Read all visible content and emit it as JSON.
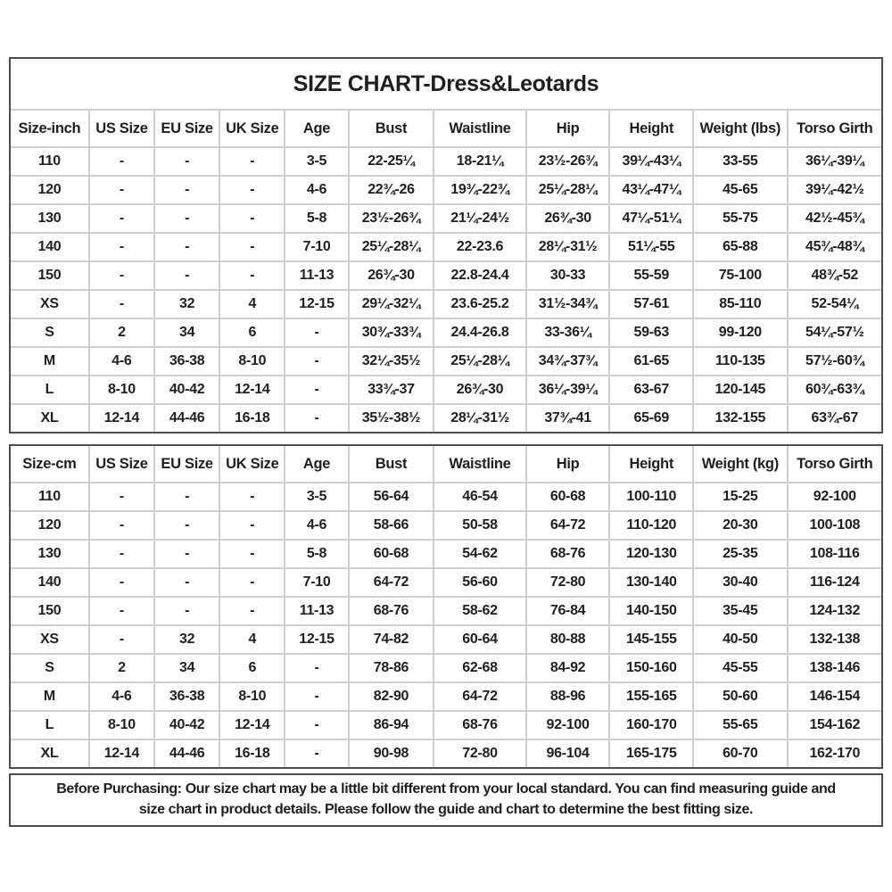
{
  "title": "SIZE CHART-Dress&Leotards",
  "tables": [
    {
      "name": "size-table-inch",
      "headers": [
        "Size-inch",
        "US Size",
        "EU Size",
        "UK Size",
        "Age",
        "Bust",
        "Waistline",
        "Hip",
        "Height",
        "Weight (lbs)",
        "Torso Girth"
      ],
      "rows": [
        [
          "110",
          "-",
          "-",
          "-",
          "3-5",
          "22-25¼",
          "18-21¼",
          "23½-26¾",
          "39¼-43¼",
          "33-55",
          "36¼-39¼"
        ],
        [
          "120",
          "-",
          "-",
          "-",
          "4-6",
          "22¾-26",
          "19¾-22¾",
          "25¼-28¼",
          "43¼-47¼",
          "45-65",
          "39¼-42½"
        ],
        [
          "130",
          "-",
          "-",
          "-",
          "5-8",
          "23½-26¾",
          "21¼-24½",
          "26¾-30",
          "47¼-51¼",
          "55-75",
          "42½-45¾"
        ],
        [
          "140",
          "-",
          "-",
          "-",
          "7-10",
          "25¼-28¼",
          "22-23.6",
          "28¼-31½",
          "51¼-55",
          "65-88",
          "45¾-48¾"
        ],
        [
          "150",
          "-",
          "-",
          "-",
          "11-13",
          "26¾-30",
          "22.8-24.4",
          "30-33",
          "55-59",
          "75-100",
          "48¾-52"
        ],
        [
          "XS",
          "-",
          "32",
          "4",
          "12-15",
          "29¼-32¼",
          "23.6-25.2",
          "31½-34¾",
          "57-61",
          "85-110",
          "52-54¼"
        ],
        [
          "S",
          "2",
          "34",
          "6",
          "-",
          "30¾-33¾",
          "24.4-26.8",
          "33-36¼",
          "59-63",
          "99-120",
          "54¼-57½"
        ],
        [
          "M",
          "4-6",
          "36-38",
          "8-10",
          "-",
          "32¼-35½",
          "25¼-28¼",
          "34¾-37¾",
          "61-65",
          "110-135",
          "57½-60¾"
        ],
        [
          "L",
          "8-10",
          "40-42",
          "12-14",
          "-",
          "33¾-37",
          "26¾-30",
          "36¼-39¼",
          "63-67",
          "120-145",
          "60¾-63¾"
        ],
        [
          "XL",
          "12-14",
          "44-46",
          "16-18",
          "-",
          "35½-38½",
          "28¼-31½",
          "37¾-41",
          "65-69",
          "132-155",
          "63¾-67"
        ]
      ]
    },
    {
      "name": "size-table-cm",
      "headers": [
        "Size-cm",
        "US Size",
        "EU Size",
        "UK Size",
        "Age",
        "Bust",
        "Waistline",
        "Hip",
        "Height",
        "Weight (kg)",
        "Torso Girth"
      ],
      "rows": [
        [
          "110",
          "-",
          "-",
          "-",
          "3-5",
          "56-64",
          "46-54",
          "60-68",
          "100-110",
          "15-25",
          "92-100"
        ],
        [
          "120",
          "-",
          "-",
          "-",
          "4-6",
          "58-66",
          "50-58",
          "64-72",
          "110-120",
          "20-30",
          "100-108"
        ],
        [
          "130",
          "-",
          "-",
          "-",
          "5-8",
          "60-68",
          "54-62",
          "68-76",
          "120-130",
          "25-35",
          "108-116"
        ],
        [
          "140",
          "-",
          "-",
          "-",
          "7-10",
          "64-72",
          "56-60",
          "72-80",
          "130-140",
          "30-40",
          "116-124"
        ],
        [
          "150",
          "-",
          "-",
          "-",
          "11-13",
          "68-76",
          "58-62",
          "76-84",
          "140-150",
          "35-45",
          "124-132"
        ],
        [
          "XS",
          "-",
          "32",
          "4",
          "12-15",
          "74-82",
          "60-64",
          "80-88",
          "145-155",
          "40-50",
          "132-138"
        ],
        [
          "S",
          "2",
          "34",
          "6",
          "-",
          "78-86",
          "62-68",
          "84-92",
          "150-160",
          "45-55",
          "138-146"
        ],
        [
          "M",
          "4-6",
          "36-38",
          "8-10",
          "-",
          "82-90",
          "64-72",
          "88-96",
          "155-165",
          "50-60",
          "146-154"
        ],
        [
          "L",
          "8-10",
          "40-42",
          "12-14",
          "-",
          "86-94",
          "68-76",
          "92-100",
          "160-170",
          "55-65",
          "154-162"
        ],
        [
          "XL",
          "12-14",
          "44-46",
          "16-18",
          "-",
          "90-98",
          "72-80",
          "96-104",
          "165-175",
          "60-70",
          "162-170"
        ]
      ]
    }
  ],
  "note": {
    "line1": "Before Purchasing: Our size chart may be a little bit different from your local standard. You can find measuring guide and",
    "line2": "size chart in product details. Please follow the guide and chart to determine the best fitting size."
  },
  "colors": {
    "text": "#1f1f1f",
    "outer_border": "#4d4d4d",
    "inner_border": "#cfcfcf",
    "background": "#ffffff"
  }
}
